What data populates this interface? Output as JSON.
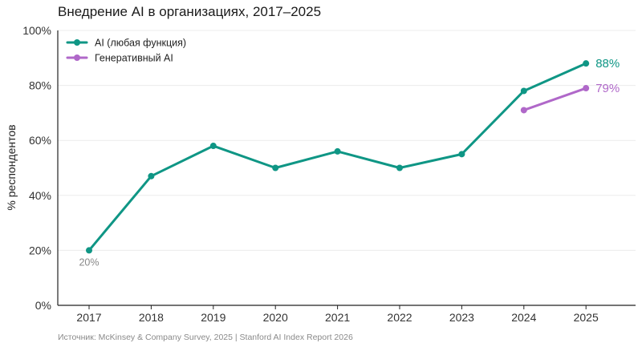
{
  "chart_data": {
    "type": "line",
    "title": "Внедрение AI в организациях, 2017–2025",
    "ylabel": "% респондентов",
    "xlabel": "",
    "categories": [
      "2017",
      "2018",
      "2019",
      "2020",
      "2021",
      "2022",
      "2023",
      "2024",
      "2025"
    ],
    "ylim": [
      0,
      100
    ],
    "yticks": [
      0,
      20,
      40,
      60,
      80,
      100
    ],
    "ytick_labels": [
      "0%",
      "20%",
      "40%",
      "60%",
      "80%",
      "100%"
    ],
    "grid": "horizontal",
    "legend_position": "top-left",
    "series": [
      {
        "name": "AI (любая функция)",
        "color": "#0f9685",
        "values": [
          20,
          47,
          58,
          50,
          56,
          50,
          55,
          78,
          88
        ],
        "end_label": "88%"
      },
      {
        "name": "Генеративный AI",
        "color": "#b068c9",
        "values": [
          null,
          null,
          null,
          null,
          null,
          null,
          null,
          71,
          79
        ],
        "end_label": "79%"
      }
    ],
    "annotations": [
      {
        "category": "2017",
        "series": 0,
        "text": "20%"
      }
    ],
    "source": "Источник: McKinsey & Company Survey, 2025 | Stanford AI Index Report 2026"
  }
}
